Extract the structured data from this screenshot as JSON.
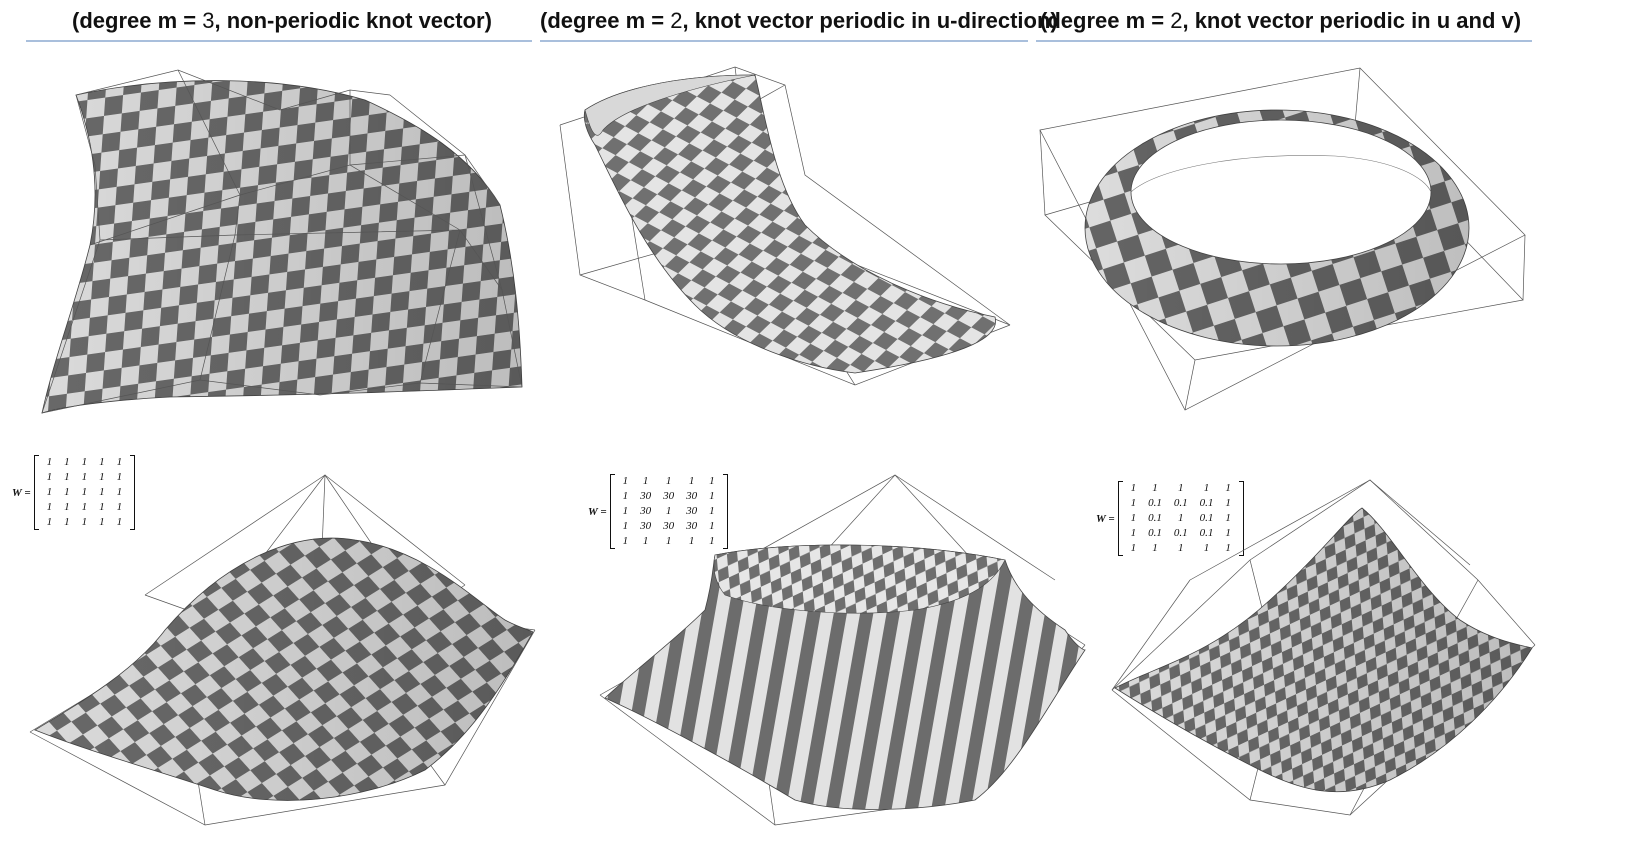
{
  "columns": [
    {
      "title_prefix": "(degree m = ",
      "degree": "3",
      "title_suffix": ", non-periodic knot vector)"
    },
    {
      "title_prefix": "(degree m = ",
      "degree": "2",
      "title_suffix": ", knot vector periodic in u-direction)"
    },
    {
      "title_prefix": "(degree m = ",
      "degree": "2",
      "title_suffix": ", knot vector periodic in u and v)"
    }
  ],
  "weights": [
    {
      "label": "W =",
      "rows": [
        [
          "1",
          "1",
          "1",
          "1",
          "1"
        ],
        [
          "1",
          "1",
          "1",
          "1",
          "1"
        ],
        [
          "1",
          "1",
          "1",
          "1",
          "1"
        ],
        [
          "1",
          "1",
          "1",
          "1",
          "1"
        ],
        [
          "1",
          "1",
          "1",
          "1",
          "1"
        ]
      ]
    },
    {
      "label": "W =",
      "rows": [
        [
          "1",
          "1",
          "1",
          "1",
          "1"
        ],
        [
          "1",
          "30",
          "30",
          "30",
          "1"
        ],
        [
          "1",
          "30",
          "1",
          "30",
          "1"
        ],
        [
          "1",
          "30",
          "30",
          "30",
          "1"
        ],
        [
          "1",
          "1",
          "1",
          "1",
          "1"
        ]
      ]
    },
    {
      "label": "W =",
      "rows": [
        [
          "1",
          "1",
          "1",
          "1",
          "1"
        ],
        [
          "1",
          "0.1",
          "0.1",
          "0.1",
          "1"
        ],
        [
          "1",
          "0.1",
          "1",
          "0.1",
          "1"
        ],
        [
          "1",
          "0.1",
          "0.1",
          "0.1",
          "1"
        ],
        [
          "1",
          "1",
          "1",
          "1",
          "1"
        ]
      ]
    }
  ],
  "colors": {
    "checker_dark": "#6e6e6e",
    "checker_light": "#e6e6e6",
    "control_net": "#555555",
    "title_rule": "#a9bfdc"
  }
}
